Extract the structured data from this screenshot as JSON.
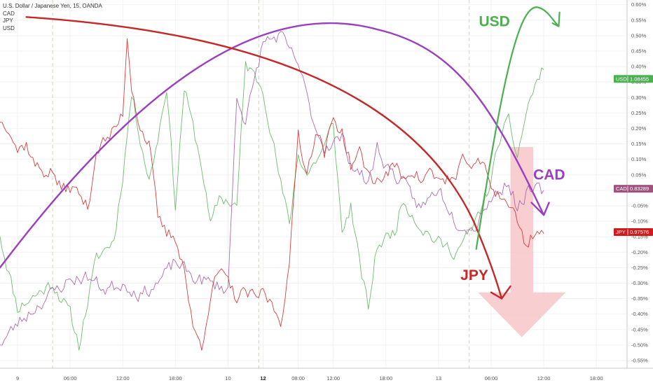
{
  "legend": {
    "title": "U.S. Dollar / Japanese Yen, 15, OANDA",
    "items": [
      "CAD",
      "JPY",
      "USD"
    ]
  },
  "colors": {
    "USD": "#5fb55f",
    "CAD": "#a95aa9",
    "JPY": "#d12a2a",
    "USD_tag": "#4caf50",
    "CAD_tag": "#a0527e",
    "JPY_tag": "#d01c1c",
    "curve_purple": "#9b3ec1",
    "curve_red": "#c62828",
    "curve_green": "#4caf50",
    "big_arrow": "#f7c6c9"
  },
  "chart_data": {
    "type": "line",
    "ylim": [
      -0.575,
      0.615
    ],
    "y_ticks": [
      0.6,
      0.55,
      0.5,
      0.45,
      0.4,
      0.35,
      0.3,
      0.25,
      0.2,
      0.15,
      0.1,
      0.05,
      0.0,
      -0.05,
      -0.1,
      -0.15,
      -0.2,
      -0.25,
      -0.3,
      -0.35,
      -0.4,
      -0.45,
      -0.5,
      -0.55
    ],
    "y_tick_labels": [
      "0.60%",
      "0.55%",
      "0.50%",
      "0.45%",
      "0.40%",
      "0.35%",
      "0.30%",
      "0.25%",
      "0.20%",
      "0.15%",
      "0.10%",
      "0.05%",
      "0.00%",
      "-0.05%",
      "-0.10%",
      "-0.15%",
      "-0.20%",
      "-0.25%",
      "-0.30%",
      "-0.35%",
      "-0.40%",
      "-0.45%",
      "-0.50%",
      "-0.55%"
    ],
    "x_tick_labels": [
      "9",
      "06:00",
      "12:00",
      "18:00",
      "10",
      "12",
      "08:00",
      "12:00",
      "18:00",
      "13",
      "06:00",
      "12:00",
      "18:00"
    ],
    "x_tick_hours": [
      0,
      6,
      12,
      18,
      24,
      28,
      32,
      36,
      42,
      48,
      54,
      60,
      66
    ],
    "x_tick_bold": [
      false,
      false,
      false,
      false,
      false,
      true,
      false,
      false,
      false,
      false,
      false,
      false,
      false
    ],
    "xlim_hours": [
      -2,
      69.5
    ],
    "session_lines_hours": [
      4,
      27.5,
      51.5
    ],
    "series": [
      {
        "name": "USD",
        "last_label": "1.08455",
        "last_value": 0.36,
        "keys": [
          [
            -2,
            -0.15
          ],
          [
            0,
            -0.38
          ],
          [
            2,
            -0.34
          ],
          [
            4,
            -0.3
          ],
          [
            6,
            -0.4
          ],
          [
            7,
            -0.5
          ],
          [
            9,
            -0.22
          ],
          [
            11,
            -0.16
          ],
          [
            12,
            0.05
          ],
          [
            13,
            0.31
          ],
          [
            15,
            0.03
          ],
          [
            16,
            0.17
          ],
          [
            17,
            0.34
          ],
          [
            18,
            -0.05
          ],
          [
            19,
            0.33
          ],
          [
            21,
            0.08
          ],
          [
            22,
            -0.12
          ],
          [
            23,
            -0.02
          ],
          [
            25,
            -0.05
          ],
          [
            26,
            0.41
          ],
          [
            28,
            0.33
          ],
          [
            30,
            0.02
          ],
          [
            31,
            -0.11
          ],
          [
            32,
            0.12
          ],
          [
            33,
            0.05
          ],
          [
            35,
            0.14
          ],
          [
            36,
            0.22
          ],
          [
            37,
            -0.14
          ],
          [
            38,
            -0.05
          ],
          [
            39,
            -0.24
          ],
          [
            40,
            -0.38
          ],
          [
            41,
            -0.18
          ],
          [
            43,
            -0.13
          ],
          [
            44,
            -0.03
          ],
          [
            46,
            -0.12
          ],
          [
            48,
            -0.17
          ],
          [
            50,
            -0.2
          ],
          [
            52,
            -0.12
          ],
          [
            54,
            0.03
          ],
          [
            55,
            0.17
          ],
          [
            56,
            0.22
          ],
          [
            57,
            0.11
          ],
          [
            58,
            0.25
          ],
          [
            59,
            0.34
          ],
          [
            60,
            0.39
          ]
        ]
      },
      {
        "name": "CAD",
        "last_label": "0.83289",
        "last_value": 0.005,
        "keys": [
          [
            -2,
            -0.5
          ],
          [
            0,
            -0.43
          ],
          [
            2,
            -0.38
          ],
          [
            4,
            -0.33
          ],
          [
            6,
            -0.29
          ],
          [
            8,
            -0.28
          ],
          [
            10,
            -0.32
          ],
          [
            12,
            -0.3
          ],
          [
            14,
            -0.34
          ],
          [
            16,
            -0.3
          ],
          [
            18,
            -0.23
          ],
          [
            20,
            -0.28
          ],
          [
            22,
            -0.3
          ],
          [
            24,
            -0.32
          ],
          [
            25,
            0.31
          ],
          [
            26,
            0.22
          ],
          [
            28,
            0.48
          ],
          [
            30,
            0.5
          ],
          [
            31,
            0.45
          ],
          [
            32,
            0.41
          ],
          [
            33,
            0.3
          ],
          [
            34,
            0.2
          ],
          [
            35,
            0.14
          ],
          [
            37,
            0.17
          ],
          [
            38,
            0.09
          ],
          [
            40,
            0.02
          ],
          [
            41,
            0.14
          ],
          [
            42,
            0.08
          ],
          [
            44,
            0.02
          ],
          [
            46,
            -0.06
          ],
          [
            48,
            0.01
          ],
          [
            50,
            -0.1
          ],
          [
            52,
            -0.13
          ],
          [
            53,
            -0.06
          ],
          [
            54,
            -0.03
          ],
          [
            56,
            0.03
          ],
          [
            57,
            -0.06
          ],
          [
            58,
            -0.01
          ],
          [
            59,
            0.0
          ],
          [
            60,
            0.0
          ]
        ]
      },
      {
        "name": "JPY",
        "last_label": "0.97576",
        "last_value": -0.135,
        "keys": [
          [
            -2,
            0.22
          ],
          [
            -1,
            0.21
          ],
          [
            0,
            0.13
          ],
          [
            1,
            0.15
          ],
          [
            2,
            0.08
          ],
          [
            3,
            0.06
          ],
          [
            4,
            0.06
          ],
          [
            5,
            0.0
          ],
          [
            6,
            0.01
          ],
          [
            7,
            -0.01
          ],
          [
            8,
            -0.06
          ],
          [
            9,
            0.13
          ],
          [
            11,
            0.19
          ],
          [
            12,
            0.25
          ],
          [
            12.5,
            0.5
          ],
          [
            13,
            0.34
          ],
          [
            14,
            0.2
          ],
          [
            15,
            0.15
          ],
          [
            16,
            -0.09
          ],
          [
            17,
            -0.14
          ],
          [
            18,
            -0.15
          ],
          [
            19,
            -0.25
          ],
          [
            20,
            -0.45
          ],
          [
            21,
            -0.5
          ],
          [
            22,
            -0.34
          ],
          [
            23,
            -0.26
          ],
          [
            24,
            -0.3
          ],
          [
            25,
            -0.35
          ],
          [
            26,
            -0.33
          ],
          [
            27,
            -0.35
          ],
          [
            28,
            -0.33
          ],
          [
            29,
            -0.37
          ],
          [
            30,
            -0.42
          ],
          [
            31,
            -0.25
          ],
          [
            32,
            0.19
          ],
          [
            33,
            0.05
          ],
          [
            34,
            0.2
          ],
          [
            35,
            0.12
          ],
          [
            36,
            0.23
          ],
          [
            37,
            0.19
          ],
          [
            38,
            0.08
          ],
          [
            39,
            0.12
          ],
          [
            40,
            0.05
          ],
          [
            41,
            0.03
          ],
          [
            42,
            0.05
          ],
          [
            43,
            0.08
          ],
          [
            44,
            0.04
          ],
          [
            45,
            0.07
          ],
          [
            46,
            0.03
          ],
          [
            47,
            0.06
          ],
          [
            48,
            0.03
          ],
          [
            49,
            0.04
          ],
          [
            50,
            0.03
          ],
          [
            51,
            0.11
          ],
          [
            52,
            0.07
          ],
          [
            53,
            0.09
          ],
          [
            54,
            0.02
          ],
          [
            55,
            -0.02
          ],
          [
            56,
            -0.04
          ],
          [
            57,
            -0.1
          ],
          [
            58,
            -0.18
          ],
          [
            59,
            -0.13
          ],
          [
            60,
            -0.14
          ]
        ]
      }
    ],
    "annotations": [
      {
        "text": "USD",
        "series": "USD"
      },
      {
        "text": "CAD",
        "series": "CAD"
      },
      {
        "text": "JPY",
        "series": "JPY"
      }
    ]
  }
}
